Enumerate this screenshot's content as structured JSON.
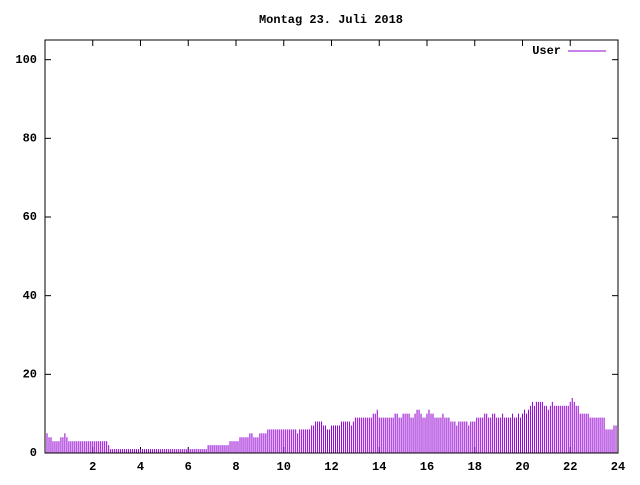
{
  "chart_data": {
    "type": "impulse",
    "title": "Montag 23. Juli 2018",
    "x": [
      0,
      0.083,
      0.167,
      0.25,
      0.333,
      0.417,
      0.5,
      0.583,
      0.667,
      0.75,
      0.833,
      0.917,
      1,
      1.083,
      1.167,
      1.25,
      1.333,
      1.417,
      1.5,
      1.583,
      1.667,
      1.75,
      1.833,
      1.917,
      2,
      2.083,
      2.167,
      2.25,
      2.333,
      2.417,
      2.5,
      2.583,
      2.667,
      2.75,
      2.833,
      2.917,
      3,
      3.083,
      3.167,
      3.25,
      3.333,
      3.417,
      3.5,
      3.583,
      3.667,
      3.75,
      3.833,
      3.917,
      4,
      4.083,
      4.167,
      4.25,
      4.333,
      4.417,
      4.5,
      4.583,
      4.667,
      4.75,
      4.833,
      4.917,
      5,
      5.083,
      5.167,
      5.25,
      5.333,
      5.417,
      5.5,
      5.583,
      5.667,
      5.75,
      5.833,
      5.917,
      6,
      6.083,
      6.167,
      6.25,
      6.333,
      6.417,
      6.5,
      6.583,
      6.667,
      6.75,
      6.833,
      6.917,
      7,
      7.083,
      7.167,
      7.25,
      7.333,
      7.417,
      7.5,
      7.583,
      7.667,
      7.75,
      7.833,
      7.917,
      8,
      8.083,
      8.167,
      8.25,
      8.333,
      8.417,
      8.5,
      8.583,
      8.667,
      8.75,
      8.833,
      8.917,
      9,
      9.083,
      9.167,
      9.25,
      9.333,
      9.417,
      9.5,
      9.583,
      9.667,
      9.75,
      9.833,
      9.917,
      10,
      10.083,
      10.167,
      10.25,
      10.333,
      10.417,
      10.5,
      10.583,
      10.667,
      10.75,
      10.833,
      10.917,
      11,
      11.083,
      11.167,
      11.25,
      11.333,
      11.417,
      11.5,
      11.583,
      11.667,
      11.75,
      11.833,
      11.917,
      12,
      12.083,
      12.167,
      12.25,
      12.333,
      12.417,
      12.5,
      12.583,
      12.667,
      12.75,
      12.833,
      12.917,
      13,
      13.083,
      13.167,
      13.25,
      13.333,
      13.417,
      13.5,
      13.583,
      13.667,
      13.75,
      13.833,
      13.917,
      14,
      14.083,
      14.167,
      14.25,
      14.333,
      14.417,
      14.5,
      14.583,
      14.667,
      14.75,
      14.833,
      14.917,
      15,
      15.083,
      15.167,
      15.25,
      15.333,
      15.417,
      15.5,
      15.583,
      15.667,
      15.75,
      15.833,
      15.917,
      16,
      16.083,
      16.167,
      16.25,
      16.333,
      16.417,
      16.5,
      16.583,
      16.667,
      16.75,
      16.833,
      16.917,
      17,
      17.083,
      17.167,
      17.25,
      17.333,
      17.417,
      17.5,
      17.583,
      17.667,
      17.75,
      17.833,
      17.917,
      18,
      18.083,
      18.167,
      18.25,
      18.333,
      18.417,
      18.5,
      18.583,
      18.667,
      18.75,
      18.833,
      18.917,
      19,
      19.083,
      19.167,
      19.25,
      19.333,
      19.417,
      19.5,
      19.583,
      19.667,
      19.75,
      19.833,
      19.917,
      20,
      20.083,
      20.167,
      20.25,
      20.333,
      20.417,
      20.5,
      20.583,
      20.667,
      20.75,
      20.833,
      20.917,
      21,
      21.083,
      21.167,
      21.25,
      21.333,
      21.417,
      21.5,
      21.583,
      21.667,
      21.75,
      21.833,
      21.917,
      22,
      22.083,
      22.167,
      22.25,
      22.333,
      22.417,
      22.5,
      22.583,
      22.667,
      22.75,
      22.833,
      22.917,
      23,
      23.083,
      23.167,
      23.25,
      23.333,
      23.417,
      23.5,
      23.583,
      23.667,
      23.75,
      23.833,
      23.917
    ],
    "series": [
      {
        "name": "User",
        "color": "#9400d3",
        "values": [
          5,
          5,
          4,
          4,
          3,
          3,
          3,
          3,
          4,
          4,
          5,
          4,
          3,
          3,
          3,
          3,
          3,
          3,
          3,
          3,
          3,
          3,
          3,
          3,
          3,
          3,
          3,
          3,
          3,
          3,
          3,
          3,
          2,
          1,
          1,
          1,
          1,
          1,
          1,
          1,
          1,
          1,
          1,
          1,
          1,
          1,
          1,
          1,
          1,
          1,
          1,
          1,
          1,
          1,
          1,
          1,
          1,
          1,
          1,
          1,
          1,
          1,
          1,
          1,
          1,
          1,
          1,
          1,
          1,
          1,
          1,
          1,
          1,
          1,
          1,
          1,
          1,
          1,
          1,
          1,
          1,
          1,
          2,
          2,
          2,
          2,
          2,
          2,
          2,
          2,
          2,
          2,
          2,
          3,
          3,
          3,
          3,
          3,
          4,
          4,
          4,
          4,
          4,
          5,
          5,
          4,
          4,
          4,
          5,
          5,
          5,
          5,
          6,
          6,
          6,
          6,
          6,
          6,
          6,
          6,
          6,
          6,
          6,
          6,
          6,
          6,
          6,
          5,
          6,
          6,
          6,
          6,
          6,
          6,
          7,
          7,
          8,
          8,
          8,
          8,
          7,
          7,
          6,
          6,
          7,
          7,
          7,
          7,
          7,
          8,
          8,
          8,
          8,
          8,
          7,
          8,
          9,
          9,
          9,
          9,
          9,
          9,
          9,
          9,
          9,
          10,
          10,
          11,
          9,
          9,
          9,
          9,
          9,
          9,
          9,
          9,
          10,
          10,
          9,
          9,
          10,
          10,
          10,
          10,
          9,
          9,
          10,
          11,
          11,
          10,
          9,
          9,
          10,
          11,
          10,
          10,
          9,
          9,
          9,
          9,
          10,
          9,
          9,
          9,
          8,
          8,
          8,
          7,
          8,
          8,
          8,
          8,
          8,
          7,
          8,
          8,
          8,
          9,
          9,
          9,
          9,
          10,
          10,
          9,
          9,
          10,
          10,
          9,
          9,
          9,
          10,
          9,
          9,
          9,
          9,
          10,
          9,
          9,
          10,
          9,
          10,
          11,
          10,
          11,
          12,
          13,
          12,
          13,
          13,
          13,
          13,
          12,
          12,
          11,
          12,
          13,
          12,
          12,
          12,
          12,
          12,
          12,
          12,
          12,
          13,
          14,
          13,
          12,
          12,
          10,
          10,
          10,
          10,
          10,
          9,
          9,
          9,
          9,
          9,
          9,
          9,
          9,
          6,
          6,
          6,
          6,
          7,
          7
        ]
      }
    ],
    "xlim": [
      0,
      24
    ],
    "xticks": [
      2,
      4,
      6,
      8,
      10,
      12,
      14,
      16,
      18,
      20,
      22,
      24
    ],
    "ylim": [
      0,
      105
    ],
    "yticks": [
      0,
      20,
      40,
      60,
      80,
      100
    ],
    "legend": "top-right"
  }
}
